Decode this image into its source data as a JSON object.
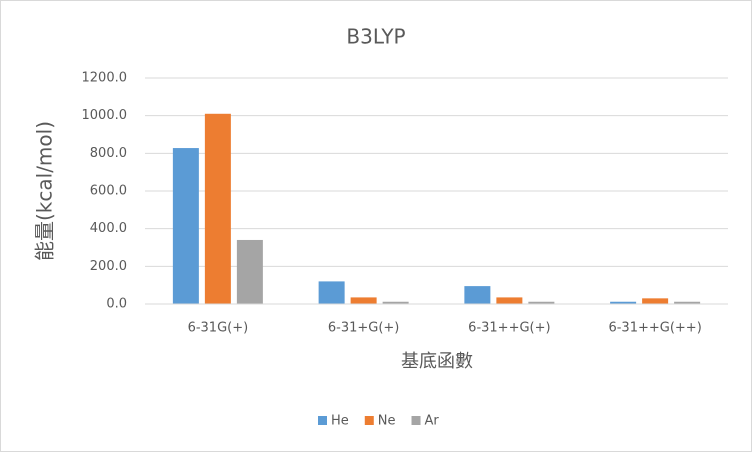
{
  "chart_data": {
    "type": "bar",
    "title": "B3LYP",
    "x_label": "基底函數",
    "y_label": "能量(kcal/mol)",
    "categories": [
      "6-31G(+)",
      "6-31+G(+)",
      "6-31++G(+)",
      "6-31++G(++)"
    ],
    "series": [
      {
        "name": "He",
        "color": "#5b9bd5",
        "values": [
          828,
          120,
          95,
          12
        ]
      },
      {
        "name": "Ne",
        "color": "#ed7d31",
        "values": [
          1010,
          35,
          35,
          30
        ]
      },
      {
        "name": "Ar",
        "color": "#a5a5a5",
        "values": [
          340,
          12,
          12,
          12
        ]
      }
    ],
    "ylim": [
      0,
      1200
    ],
    "yticks": [
      {
        "value": 0,
        "label": "0.0"
      },
      {
        "value": 200,
        "label": "200.0"
      },
      {
        "value": 400,
        "label": "400.0"
      },
      {
        "value": 600,
        "label": "600.0"
      },
      {
        "value": 800,
        "label": "800.0"
      },
      {
        "value": 1000,
        "label": "1000.0"
      },
      {
        "value": 1200,
        "label": "1200.0"
      }
    ],
    "grid": true,
    "legend": "bottom"
  }
}
